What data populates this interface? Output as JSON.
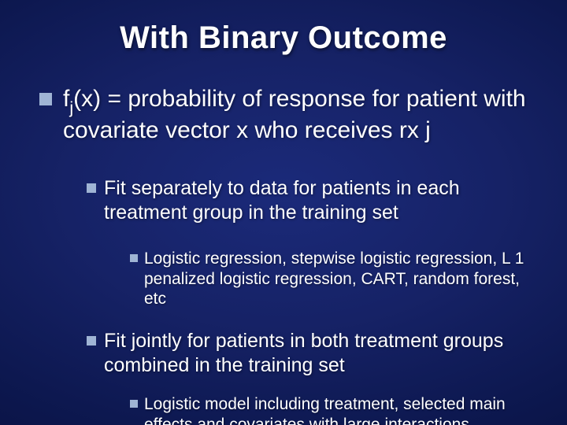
{
  "background": {
    "gradient_center": "#1b2a7a",
    "gradient_mid": "#162266",
    "gradient_outer": "#0d1850",
    "gradient_edge": "#060d38"
  },
  "bullet_color": "#9fb4d4",
  "text_color": "#ffffff",
  "title": {
    "text": "With Binary Outcome",
    "fontsize": 40,
    "fontweight": "bold"
  },
  "level1": {
    "text_pre": "f",
    "sub": "j",
    "text_post": "(x) = probability of response for patient with covariate vector x who receives rx j",
    "fontsize": 30
  },
  "level2": [
    {
      "text": "Fit separately to data for patients in each treatment group in the training set",
      "fontsize": 25
    },
    {
      "text": "Fit jointly for patients in both treatment groups combined in the training set",
      "fontsize": 25
    }
  ],
  "level3": [
    {
      "text": "Logistic regression, stepwise logistic regression, L 1 penalized logistic regression, CART, random forest, etc",
      "fontsize": 21
    },
    {
      "text": "Logistic model including treatment, selected main effects  and covariates with large interactions",
      "fontsize": 21
    }
  ]
}
